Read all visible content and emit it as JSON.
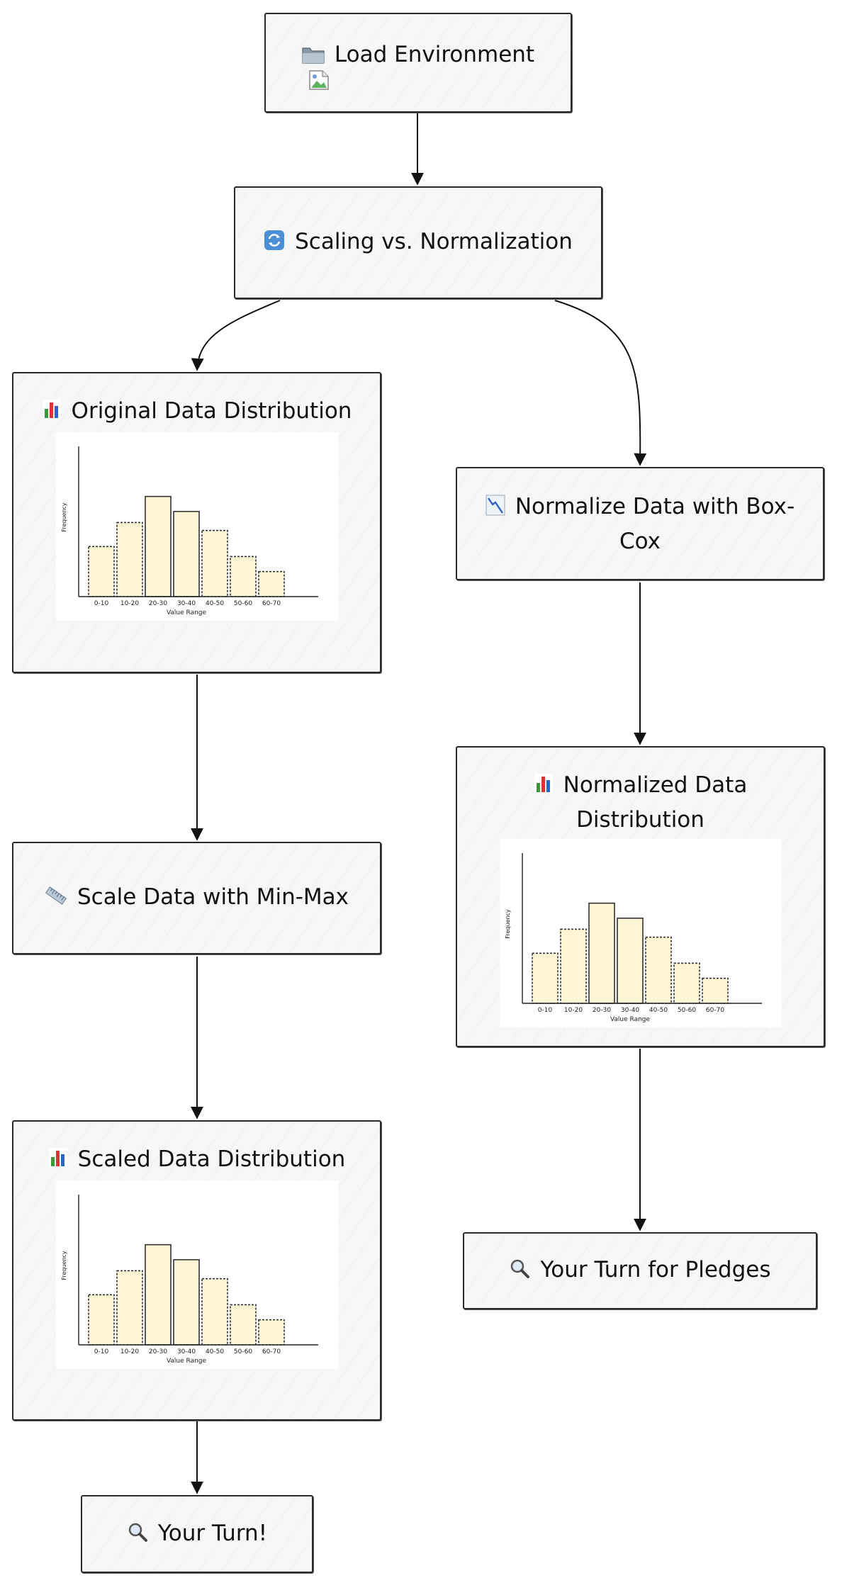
{
  "diagram": {
    "nodes": [
      {
        "id": "load-environment",
        "icon": "folder-icon",
        "label": "Load Environment",
        "has_broken_image": true
      },
      {
        "id": "scaling-vs-normalization",
        "icon": "arrows-cycle-icon",
        "label": "Scaling vs. Normalization"
      },
      {
        "id": "original-distribution",
        "icon": "bar-chart-icon",
        "label": "Original Data Distribution",
        "chart": 0
      },
      {
        "id": "normalize-boxcox",
        "icon": "chart-decreasing-icon",
        "label": "Normalize Data with Box-Cox"
      },
      {
        "id": "normalized-distribution",
        "icon": "bar-chart-icon",
        "label": "Normalized Data Distribution",
        "chart": 1
      },
      {
        "id": "scale-minmax",
        "icon": "ruler-icon",
        "label": "Scale Data with Min-Max"
      },
      {
        "id": "scaled-distribution",
        "icon": "bar-chart-icon",
        "label": "Scaled Data Distribution",
        "chart": 2
      },
      {
        "id": "your-turn-pledges",
        "icon": "magnifier-icon",
        "label": "Your Turn for Pledges"
      },
      {
        "id": "your-turn",
        "icon": "magnifier-icon",
        "label": "Your Turn!"
      }
    ],
    "edges": [
      {
        "from": "load-environment",
        "to": "scaling-vs-normalization"
      },
      {
        "from": "scaling-vs-normalization",
        "to": "original-distribution"
      },
      {
        "from": "scaling-vs-normalization",
        "to": "normalize-boxcox"
      },
      {
        "from": "original-distribution",
        "to": "scale-minmax"
      },
      {
        "from": "scale-minmax",
        "to": "scaled-distribution"
      },
      {
        "from": "scaled-distribution",
        "to": "your-turn"
      },
      {
        "from": "normalize-boxcox",
        "to": "normalized-distribution"
      },
      {
        "from": "normalized-distribution",
        "to": "your-turn-pledges"
      }
    ]
  },
  "chart_data": [
    {
      "type": "bar",
      "title": "",
      "categories": [
        "0-10",
        "10-20",
        "20-30",
        "30-40",
        "40-50",
        "50-60",
        "60-70"
      ],
      "values": [
        5,
        7.4,
        10,
        8.5,
        6.6,
        4,
        2.5
      ],
      "xlabel": "Value Range",
      "ylabel": "Frequency",
      "ylim": [
        0,
        15
      ],
      "grid": false,
      "bar_fill": "#fff6d5",
      "bar_stroke": "#333333"
    },
    {
      "type": "bar",
      "title": "",
      "categories": [
        "0-10",
        "10-20",
        "20-30",
        "30-40",
        "40-50",
        "50-60",
        "60-70"
      ],
      "values": [
        5,
        7.4,
        10,
        8.5,
        6.6,
        4,
        2.5
      ],
      "xlabel": "Value Range",
      "ylabel": "Frequency",
      "ylim": [
        0,
        15
      ],
      "grid": false,
      "bar_fill": "#fff6d5",
      "bar_stroke": "#333333"
    },
    {
      "type": "bar",
      "title": "",
      "categories": [
        "0-10",
        "10-20",
        "20-30",
        "30-40",
        "40-50",
        "50-60",
        "60-70"
      ],
      "values": [
        5,
        7.4,
        10,
        8.5,
        6.6,
        4,
        2.5
      ],
      "xlabel": "Value Range",
      "ylabel": "Frequency",
      "ylim": [
        0,
        15
      ],
      "grid": false,
      "bar_fill": "#fff6d5",
      "bar_stroke": "#333333"
    }
  ],
  "colors": {
    "node_fill": "#f7f7f7",
    "node_border": "#2a2a2a",
    "edge": "#111111"
  }
}
